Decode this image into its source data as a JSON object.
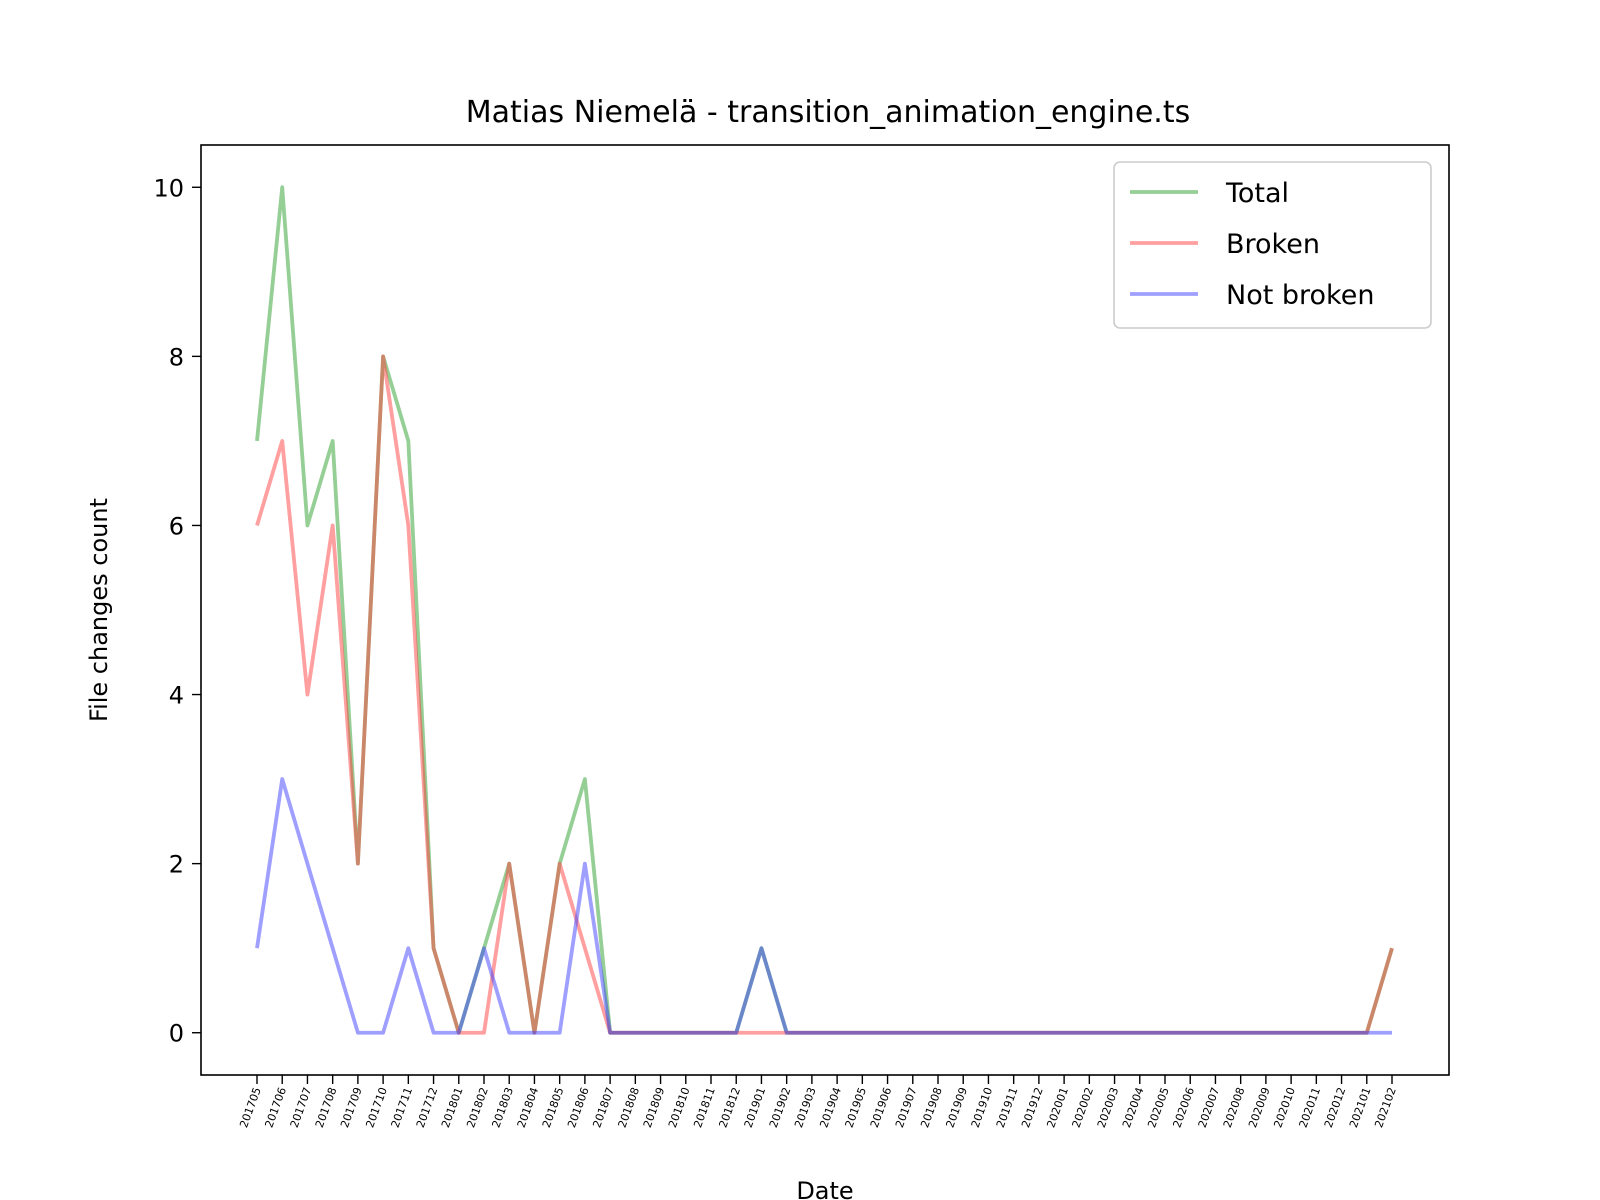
{
  "chart_data": {
    "type": "line",
    "title": "Matias Niemelä - transition_animation_engine.ts",
    "xlabel": "Date",
    "ylabel": "File changes count",
    "ylim": [
      -0.5,
      10.5
    ],
    "yticks": [
      0,
      2,
      4,
      6,
      8,
      10
    ],
    "grid": false,
    "legend_position": "top-right",
    "categories": [
      "201705",
      "201706",
      "201707",
      "201708",
      "201709",
      "201710",
      "201711",
      "201712",
      "201801",
      "201802",
      "201803",
      "201804",
      "201805",
      "201806",
      "201807",
      "201808",
      "201809",
      "201810",
      "201811",
      "201812",
      "201901",
      "201902",
      "201903",
      "201904",
      "201905",
      "201906",
      "201907",
      "201908",
      "201909",
      "201910",
      "201911",
      "201912",
      "202001",
      "202002",
      "202003",
      "202004",
      "202005",
      "202006",
      "202007",
      "202008",
      "202009",
      "202010",
      "202011",
      "202012",
      "202101",
      "202102"
    ],
    "series": [
      {
        "name": "Total",
        "color": "#2ca02c",
        "values": [
          7,
          10,
          6,
          7,
          2,
          8,
          7,
          1,
          0,
          1,
          2,
          0,
          2,
          3,
          0,
          0,
          0,
          0,
          0,
          0,
          1,
          0,
          0,
          0,
          0,
          0,
          0,
          0,
          0,
          0,
          0,
          0,
          0,
          0,
          0,
          0,
          0,
          0,
          0,
          0,
          0,
          0,
          0,
          0,
          0,
          1
        ]
      },
      {
        "name": "Broken",
        "color": "#ff4040",
        "values": [
          6,
          7,
          4,
          6,
          2,
          8,
          6,
          1,
          0,
          0,
          2,
          0,
          2,
          1,
          0,
          0,
          0,
          0,
          0,
          0,
          0,
          0,
          0,
          0,
          0,
          0,
          0,
          0,
          0,
          0,
          0,
          0,
          0,
          0,
          0,
          0,
          0,
          0,
          0,
          0,
          0,
          0,
          0,
          0,
          0,
          1
        ]
      },
      {
        "name": "Not broken",
        "color": "#4040ff",
        "values": [
          1,
          3,
          2,
          1,
          0,
          0,
          1,
          0,
          0,
          1,
          0,
          0,
          0,
          2,
          0,
          0,
          0,
          0,
          0,
          0,
          1,
          0,
          0,
          0,
          0,
          0,
          0,
          0,
          0,
          0,
          0,
          0,
          0,
          0,
          0,
          0,
          0,
          0,
          0,
          0,
          0,
          0,
          0,
          0,
          0,
          0
        ]
      }
    ]
  }
}
